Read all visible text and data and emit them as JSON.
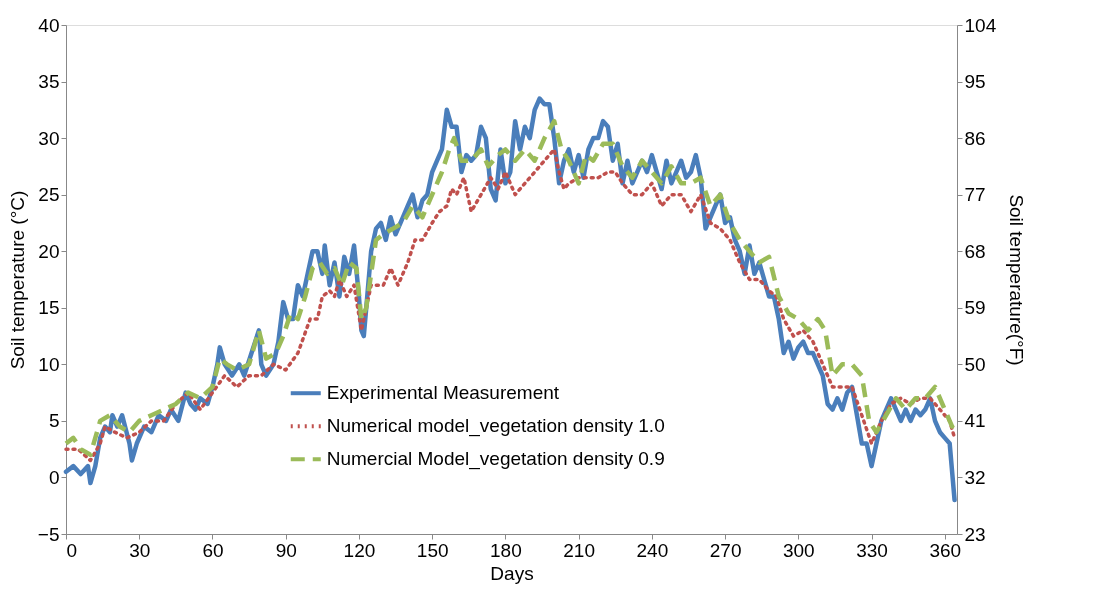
{
  "chart_data": {
    "type": "line",
    "xlabel": "Days",
    "ylabel": "Soil temperature (°C)",
    "y2label": "Soil temperature(°F)",
    "xlim": [
      0,
      365
    ],
    "xticks": [
      0,
      30,
      60,
      90,
      120,
      150,
      180,
      210,
      240,
      270,
      300,
      330,
      360
    ],
    "ylim": [
      -5,
      40
    ],
    "yticks": [
      -5,
      0,
      5,
      10,
      15,
      20,
      25,
      30,
      35,
      40
    ],
    "y2lim": [
      23,
      104
    ],
    "y2ticks": [
      23,
      32,
      41,
      50,
      59,
      68,
      77,
      86,
      95,
      104
    ],
    "grid": false,
    "legend": "bottom",
    "marker": "none",
    "series": [
      {
        "name": "Experimental Measurement",
        "color": "#4a7ebb",
        "line_style": "solid",
        "x": [
          0,
          3,
          6,
          9,
          10,
          12,
          14,
          16,
          18,
          19,
          21,
          23,
          26,
          27,
          29,
          32,
          35,
          38,
          41,
          43,
          46,
          49,
          51,
          53,
          55,
          58,
          60,
          62,
          63,
          65,
          68,
          71,
          73,
          76,
          79,
          80,
          82,
          85,
          87,
          89,
          91,
          93,
          95,
          97,
          99,
          101,
          103,
          105,
          106,
          108,
          110,
          112,
          114,
          116,
          118,
          120,
          121,
          122,
          123,
          125,
          127,
          129,
          131,
          133,
          135,
          138,
          140,
          142,
          144,
          146,
          148,
          150,
          152,
          154,
          156,
          158,
          160,
          162,
          164,
          166,
          168,
          170,
          172,
          174,
          176,
          178,
          180,
          182,
          184,
          186,
          188,
          190,
          192,
          194,
          196,
          198,
          200,
          202,
          204,
          206,
          208,
          210,
          212,
          214,
          216,
          218,
          220,
          222,
          224,
          226,
          228,
          230,
          232,
          234,
          236,
          238,
          240,
          242,
          244,
          246,
          248,
          250,
          252,
          254,
          256,
          258,
          260,
          262,
          264,
          266,
          268,
          270,
          272,
          274,
          276,
          278,
          280,
          282,
          284,
          286,
          288,
          290,
          292,
          294,
          296,
          298,
          300,
          302,
          304,
          306,
          308,
          310,
          312,
          314,
          316,
          318,
          320,
          322,
          324,
          326,
          328,
          330,
          332,
          334,
          336,
          338,
          340,
          342,
          344,
          346,
          348,
          350,
          352,
          354,
          356,
          358,
          360,
          362,
          364
        ],
        "values": [
          0.5,
          1,
          0.3,
          1,
          -0.5,
          1,
          3.5,
          4.5,
          4,
          5.5,
          4.5,
          5.5,
          3,
          1.5,
          3,
          4.5,
          4,
          5.5,
          5,
          6,
          5,
          7.5,
          6.5,
          6,
          7,
          6.5,
          8,
          10,
          11.5,
          10,
          9,
          10,
          9,
          11,
          13,
          10,
          9,
          10,
          12,
          15.5,
          14,
          14,
          17,
          16,
          18,
          20,
          20,
          18,
          20.5,
          17,
          19,
          16,
          19.5,
          18,
          20.5,
          16,
          13,
          12.5,
          15,
          20,
          22,
          22.5,
          21,
          23,
          21.5,
          23,
          24,
          25,
          23,
          24.5,
          25,
          27,
          28,
          29,
          32.5,
          31,
          31,
          27,
          28.5,
          28,
          28.5,
          31,
          30,
          25.5,
          24.5,
          29,
          26,
          27,
          31.5,
          29,
          31,
          30,
          32.5,
          33.5,
          33,
          33,
          30,
          26,
          28,
          29,
          27,
          28.5,
          26.5,
          29,
          30,
          30,
          31.5,
          31,
          28,
          29.5,
          26,
          28,
          26,
          27,
          28,
          27,
          28.5,
          27,
          25.5,
          28,
          26,
          27,
          28,
          26.5,
          27,
          28.5,
          26.5,
          22,
          23,
          24,
          25,
          22.5,
          23,
          21,
          20,
          18,
          20.5,
          18,
          19,
          17.5,
          16,
          16,
          14,
          11,
          12,
          10.5,
          11.5,
          12,
          11,
          11,
          10,
          9,
          6.5,
          6,
          7,
          6,
          7.5,
          8,
          5.5,
          3,
          3,
          1,
          3,
          5,
          6,
          7,
          6,
          5,
          6,
          5,
          6,
          5.5,
          6,
          7,
          5,
          4,
          3.5,
          3,
          -2
        ]
      },
      {
        "name": "Numerical  model_vegetation density 1.0",
        "color": "#c0504d",
        "line_style": "dotted",
        "x": [
          0,
          5,
          10,
          14,
          16,
          20,
          25,
          30,
          35,
          40,
          45,
          50,
          55,
          60,
          65,
          70,
          75,
          80,
          85,
          90,
          95,
          100,
          103,
          105,
          108,
          110,
          112,
          115,
          118,
          121,
          125,
          130,
          133,
          136,
          140,
          143,
          146,
          150,
          153,
          156,
          158,
          160,
          163,
          166,
          170,
          174,
          177,
          180,
          184,
          188,
          192,
          196,
          200,
          202,
          204,
          206,
          210,
          214,
          218,
          222,
          225,
          228,
          232,
          236,
          240,
          244,
          248,
          252,
          256,
          260,
          264,
          268,
          272,
          276,
          280,
          284,
          288,
          291,
          294,
          298,
          302,
          306,
          310,
          314,
          318,
          322,
          326,
          330,
          334,
          338,
          342,
          346,
          350,
          354,
          358,
          362,
          364
        ],
        "values": [
          2.5,
          2.5,
          1.5,
          3,
          4.5,
          4,
          3.5,
          4,
          5,
          5,
          6.5,
          7.5,
          6,
          7.5,
          9,
          8,
          9,
          9,
          10,
          9.5,
          11,
          14,
          14,
          16,
          16.5,
          16,
          17.5,
          16,
          17,
          13,
          17,
          17,
          18.5,
          17,
          19,
          21,
          21,
          22.5,
          23.5,
          24,
          25.5,
          25,
          26.5,
          23.5,
          25,
          26.5,
          25.5,
          27,
          25,
          26,
          27,
          28,
          29,
          27,
          25.5,
          26,
          26.5,
          26.5,
          26.5,
          27,
          27,
          26,
          25,
          25,
          26,
          24,
          25,
          25,
          23.5,
          25,
          22.5,
          22,
          21,
          19,
          17.5,
          17.5,
          16.5,
          16,
          14,
          12.5,
          13,
          12,
          10,
          8,
          8,
          8,
          5.5,
          3,
          5,
          6.5,
          7,
          6.5,
          7,
          7,
          6,
          5,
          3.5
        ]
      },
      {
        "name": "Numercial Model_vegetation density 0.9",
        "color": "#9bbb59",
        "line_style": "dashed",
        "x": [
          0,
          3,
          6,
          10,
          14,
          18,
          22,
          26,
          30,
          35,
          40,
          45,
          50,
          55,
          60,
          63,
          66,
          70,
          75,
          79,
          82,
          86,
          89,
          92,
          95,
          98,
          101,
          104,
          107,
          110,
          113,
          116,
          119,
          121,
          123,
          127,
          130,
          134,
          138,
          142,
          146,
          150,
          154,
          157,
          159,
          162,
          166,
          170,
          173,
          177,
          180,
          184,
          188,
          192,
          196,
          200,
          203,
          206,
          210,
          213,
          216,
          220,
          224,
          228,
          232,
          236,
          240,
          244,
          248,
          252,
          256,
          260,
          264,
          268,
          272,
          276,
          280,
          284,
          288,
          292,
          296,
          300,
          304,
          308,
          311,
          314,
          318,
          322,
          326,
          329,
          332,
          336,
          340,
          344,
          348,
          352,
          356,
          360,
          363,
          364
        ],
        "values": [
          3,
          3.5,
          2.5,
          2,
          5,
          5.5,
          4.5,
          4,
          5,
          5.5,
          6,
          6.5,
          7.5,
          7,
          8,
          10.5,
          10,
          9.5,
          10,
          13,
          10.5,
          11,
          12.5,
          14.5,
          14,
          16,
          18.5,
          19,
          18,
          18.5,
          17,
          19,
          18.5,
          14,
          15,
          21,
          21.5,
          22,
          22.5,
          24,
          23,
          25,
          27,
          29,
          30,
          28,
          28,
          29,
          27.5,
          28.5,
          29,
          28,
          29,
          28,
          30,
          31.5,
          29,
          28,
          26,
          28.5,
          28,
          29.5,
          29.5,
          27.5,
          26.5,
          28,
          27,
          26,
          27.5,
          26,
          26,
          26.5,
          24,
          25,
          22.5,
          21,
          20,
          19,
          19.5,
          16,
          14.5,
          14,
          13,
          14,
          13,
          9,
          10,
          10,
          9,
          5,
          4,
          5.5,
          7,
          6,
          7,
          7,
          8,
          6,
          4.5,
          5
        ]
      }
    ]
  }
}
